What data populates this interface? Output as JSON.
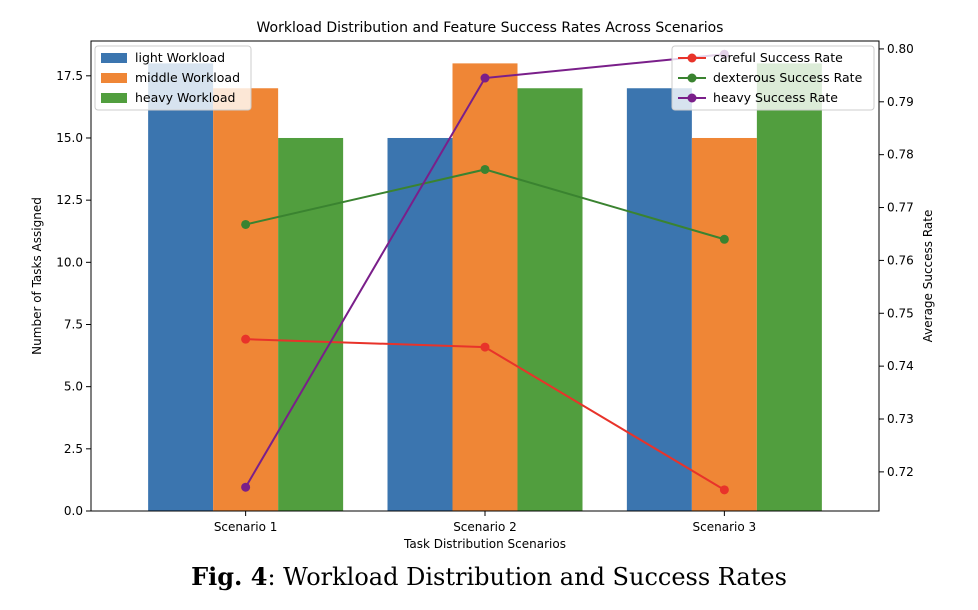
{
  "chart_data": {
    "type": "bar+line",
    "title": "Workload Distribution and Feature Success Rates Across Scenarios",
    "xlabel": "Task Distribution Scenarios",
    "ylabel_left": "Number of Tasks Assigned",
    "ylabel_right": "Average Success Rate",
    "categories": [
      "Scenario 1",
      "Scenario 2",
      "Scenario 3"
    ],
    "ylim_left": [
      0,
      18.9
    ],
    "ylim_right": [
      0.7126,
      0.8015
    ],
    "yticks_left": [
      "0.0",
      "2.5",
      "5.0",
      "7.5",
      "10.0",
      "12.5",
      "15.0",
      "17.5"
    ],
    "yticks_right": [
      "0.72",
      "0.73",
      "0.74",
      "0.75",
      "0.76",
      "0.77",
      "0.78",
      "0.79",
      "0.80"
    ],
    "bar_series": [
      {
        "name": "light Workload",
        "color": "#3b75af",
        "values": [
          18,
          15,
          17
        ]
      },
      {
        "name": "middle Workload",
        "color": "#ef8636",
        "values": [
          17,
          18,
          15
        ]
      },
      {
        "name": "heavy Workload",
        "color": "#519e3e",
        "values": [
          15,
          17,
          18
        ]
      }
    ],
    "line_series": [
      {
        "name": "careful Success Rate",
        "color": "#e8332a",
        "values": [
          0.7451,
          0.7436,
          0.7166
        ]
      },
      {
        "name": "dexterous Success Rate",
        "color": "#3a8330",
        "values": [
          0.7668,
          0.7772,
          0.764
        ]
      },
      {
        "name": "heavy Success Rate",
        "color": "#7a1f8a",
        "values": [
          0.7171,
          0.7945,
          0.799
        ]
      }
    ],
    "legend_left_position": "top-left",
    "legend_right_position": "top-right",
    "grid": false
  },
  "caption": {
    "label": "Fig. 4",
    "text": ": Workload Distribution and Success Rates"
  }
}
